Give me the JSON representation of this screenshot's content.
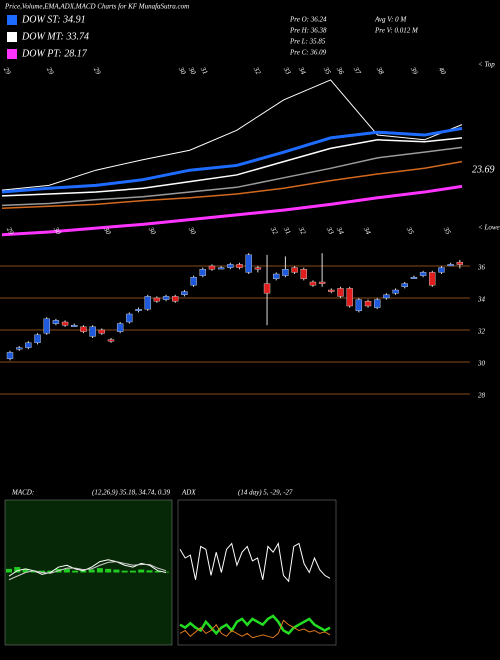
{
  "header": {
    "title": "Price,Volume,EMA,ADX,MACD Charts for KF MunafaSutra.com",
    "legend": [
      {
        "label": "DOW ST: 34.91",
        "color": "#1e6cff"
      },
      {
        "label": "DOW MT: 33.74",
        "color": "#ffffff"
      },
      {
        "label": "DOW PT: 28.17",
        "color": "#ff33ff"
      }
    ],
    "pre": [
      "Pre  O: 36.24",
      "Pre  H: 36.38",
      "Pre  L: 35.85",
      "Pre  C: 36.09"
    ],
    "volume": [
      "Avg V: 0  M",
      "Pre  V: 0.012  M"
    ]
  },
  "chart_data": [
    {
      "type": "line",
      "last_value_label": "23.69",
      "top_label": "< Top",
      "date_labels": [
        "29",
        "29",
        "29",
        "30",
        "30",
        "31",
        "32",
        "33",
        "34",
        "35",
        "36",
        "37",
        "38",
        "39",
        "40"
      ],
      "x": [
        0,
        5,
        10,
        15,
        20,
        25,
        30,
        35,
        40,
        45,
        49
      ],
      "xlim": [
        0,
        49
      ],
      "ylim": [
        20,
        40
      ],
      "series": [
        {
          "color": "#ffffff",
          "width": 1,
          "values": [
            26.3,
            26.8,
            28.4,
            29.5,
            30.5,
            32.6,
            35.8,
            37.9,
            32.1,
            31.6,
            33.2
          ]
        },
        {
          "color": "#1e6cff",
          "width": 3,
          "values": [
            26.1,
            26.5,
            26.8,
            27.4,
            28.4,
            28.9,
            30.3,
            31.8,
            32.4,
            32.1,
            32.8
          ]
        },
        {
          "color": "#ffffff",
          "width": 1.5,
          "values": [
            25.7,
            25.9,
            26.1,
            26.5,
            27.2,
            27.9,
            29.3,
            30.7,
            31.6,
            31.4,
            31.8
          ]
        },
        {
          "color": "#9a9a9a",
          "width": 1.5,
          "values": [
            24.7,
            24.9,
            25.3,
            25.6,
            26.1,
            26.6,
            27.6,
            28.6,
            29.7,
            30.3,
            30.8
          ]
        },
        {
          "color": "#d2691e",
          "width": 1.5,
          "values": [
            24.4,
            24.6,
            24.8,
            25.2,
            25.5,
            25.9,
            26.5,
            27.3,
            28.0,
            28.6,
            29.3
          ]
        },
        {
          "color": "#ff33ff",
          "width": 3,
          "values": [
            21.6,
            21.9,
            22.3,
            22.7,
            23.2,
            23.7,
            24.2,
            24.8,
            25.5,
            26.1,
            26.7
          ]
        }
      ]
    },
    {
      "type": "candlestick",
      "lower_label": "< Lower",
      "date_labels": [
        "29",
        "30",
        "30",
        "30",
        "30",
        "32",
        "31",
        "32",
        "33",
        "34",
        "34",
        "35",
        "35"
      ],
      "up_color": "#1e5adb",
      "down_color": "#e01e1e",
      "grid_color": "#8b4a1a",
      "ylim": [
        27.5,
        37
      ],
      "yticks": [
        36,
        34,
        32,
        30,
        28
      ],
      "open": [
        30.2,
        30.8,
        30.9,
        31.2,
        31.8,
        32.4,
        32.5,
        32.3,
        32.2,
        31.6,
        32.0,
        31.4,
        31.9,
        32.5,
        33.2,
        33.3,
        34.0,
        33.9,
        34.1,
        34.2,
        34.8,
        35.4,
        36.0,
        35.9,
        35.9,
        36.1,
        35.6,
        35.9,
        34.9,
        35.2,
        35.4,
        35.9,
        35.8,
        35.0,
        35.0,
        34.5,
        34.6,
        34.6,
        33.2,
        33.8,
        33.4,
        34.0,
        34.3,
        34.7,
        35.3,
        35.4,
        35.6,
        35.6,
        36.1,
        36.24
      ],
      "high": [
        30.7,
        31.0,
        31.3,
        31.8,
        32.8,
        32.7,
        32.6,
        32.4,
        32.3,
        32.3,
        32.1,
        31.5,
        32.5,
        33.1,
        33.4,
        34.2,
        34.1,
        34.2,
        34.2,
        34.5,
        35.4,
        35.9,
        36.1,
        36.0,
        36.2,
        36.2,
        36.8,
        36.0,
        36.7,
        35.6,
        36.6,
        36.0,
        35.9,
        35.1,
        36.8,
        34.6,
        34.7,
        34.7,
        34.0,
        33.9,
        34.0,
        34.3,
        34.6,
        35.0,
        35.4,
        35.7,
        35.7,
        36.0,
        36.2,
        36.38
      ],
      "low": [
        30.1,
        30.7,
        30.8,
        31.1,
        31.7,
        32.3,
        32.2,
        32.2,
        31.8,
        31.5,
        31.7,
        31.2,
        31.8,
        32.4,
        33.1,
        33.2,
        33.7,
        33.8,
        33.7,
        34.1,
        34.7,
        35.3,
        35.7,
        35.8,
        35.8,
        35.8,
        35.5,
        35.6,
        32.3,
        35.1,
        35.3,
        35.5,
        35.1,
        34.7,
        34.7,
        34.3,
        34.0,
        33.4,
        33.1,
        33.4,
        33.3,
        33.9,
        34.2,
        34.6,
        35.2,
        35.3,
        34.7,
        35.5,
        36.0,
        35.85
      ],
      "close": [
        30.6,
        30.9,
        31.2,
        31.7,
        32.7,
        32.6,
        32.3,
        32.3,
        31.9,
        32.2,
        31.8,
        31.3,
        32.4,
        33.0,
        33.3,
        34.1,
        33.8,
        34.1,
        33.8,
        34.4,
        35.3,
        35.8,
        35.8,
        35.9,
        36.1,
        35.9,
        36.7,
        35.8,
        34.3,
        35.5,
        35.8,
        35.6,
        35.2,
        34.8,
        34.9,
        34.4,
        34.1,
        33.5,
        33.9,
        33.5,
        33.9,
        34.2,
        34.5,
        34.9,
        35.3,
        35.6,
        34.8,
        35.9,
        36.1,
        36.09
      ]
    },
    {
      "type": "macd",
      "title": "MACD:",
      "params": "(12,26,9) 35.18, 34.74, 0.39",
      "ylim": [
        -2,
        2
      ],
      "series": [
        {
          "color": "#ffffff",
          "values": [
            -0.1,
            0.05,
            0.1,
            0.05,
            -0.05,
            0,
            0.15,
            0.2,
            0.1,
            0.05,
            0.15,
            0.3,
            0.35,
            0.3,
            0.2,
            0.15,
            0.25,
            0.2,
            0.05,
            0.0
          ]
        },
        {
          "color": "#cfcfcf",
          "values": [
            -0.2,
            -0.1,
            0.0,
            0.05,
            0.0,
            -0.02,
            0.05,
            0.12,
            0.12,
            0.08,
            0.1,
            0.2,
            0.28,
            0.3,
            0.25,
            0.2,
            0.22,
            0.22,
            0.12,
            0.05
          ]
        }
      ],
      "hist_color": "#22cc22",
      "histogram": [
        0.1,
        0.15,
        0.1,
        0.05,
        0.05,
        0.05,
        0.1,
        0.1,
        0.05,
        0.05,
        0.08,
        0.12,
        0.1,
        0.08,
        0.05,
        0.05,
        0.08,
        0.06,
        0.04,
        0.02
      ]
    },
    {
      "type": "adx",
      "title": "ADX",
      "params": "(14 day) 5, -29, -27",
      "ylim": [
        0,
        100
      ],
      "series": [
        {
          "color": "#ffffff",
          "width": 1,
          "values": [
            66,
            60,
            62,
            45,
            68,
            66,
            48,
            64,
            50,
            66,
            70,
            55,
            64,
            68,
            58,
            60,
            45,
            68,
            64,
            70,
            48,
            44,
            68,
            70,
            56,
            50,
            60,
            52,
            48,
            46
          ]
        },
        {
          "color": "#22dd22",
          "width": 2.5,
          "values": [
            14,
            12,
            15,
            12,
            10,
            16,
            12,
            8,
            12,
            14,
            10,
            16,
            18,
            14,
            18,
            16,
            14,
            18,
            20,
            16,
            10,
            8,
            12,
            14,
            16,
            18,
            14,
            12,
            10,
            12
          ]
        },
        {
          "color": "#e07a1a",
          "width": 1,
          "values": [
            8,
            10,
            6,
            9,
            12,
            8,
            10,
            14,
            8,
            6,
            10,
            8,
            6,
            8,
            5,
            6,
            7,
            6,
            5,
            8,
            17,
            14,
            12,
            10,
            11,
            9,
            10,
            8,
            9,
            7
          ]
        }
      ]
    }
  ]
}
